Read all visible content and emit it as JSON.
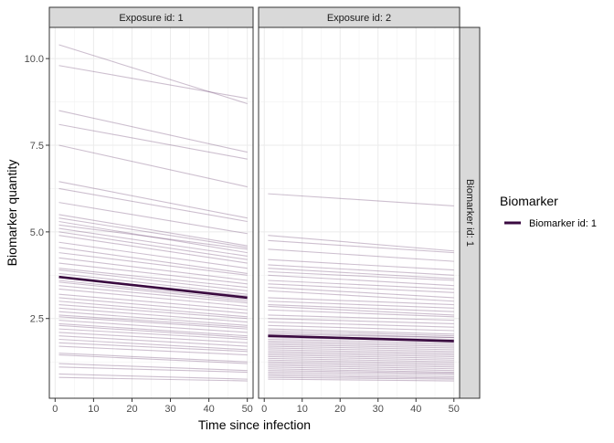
{
  "chart_data": {
    "type": "line",
    "facet_columns": [
      "Exposure id: 1",
      "Exposure id: 2"
    ],
    "facet_rows": [
      "Biomarker id: 1"
    ],
    "xlabel": "Time since infection",
    "ylabel": "Biomarker quantity",
    "x_ticks": [
      0,
      10,
      20,
      30,
      40,
      50
    ],
    "y_ticks": [
      2.5,
      5.0,
      7.5,
      10.0
    ],
    "y_tick_labels": [
      "2.5",
      "5.0",
      "7.5",
      "10.0"
    ],
    "xlim": [
      -1.5,
      51.5
    ],
    "ylim": [
      0.2,
      10.9
    ],
    "grid": true,
    "legend": {
      "title": "Biomarker",
      "entries": [
        "Biomarker id: 1"
      ],
      "position": "right"
    },
    "colors": {
      "individual": "#5b2b5f",
      "mean": "#3a0a40",
      "strip": "#d9d9d9",
      "grid": "#ebebeb",
      "panel_border": "#333333"
    },
    "panels": [
      {
        "exposure": "Exposure id: 1",
        "x": [
          1,
          50
        ],
        "mean_series": {
          "name": "Biomarker id: 1",
          "values": [
            3.7,
            3.1
          ]
        },
        "individual_series": [
          [
            10.4,
            8.7
          ],
          [
            9.8,
            8.85
          ],
          [
            8.5,
            7.3
          ],
          [
            8.1,
            7.1
          ],
          [
            7.5,
            6.3
          ],
          [
            6.45,
            5.4
          ],
          [
            6.25,
            5.3
          ],
          [
            5.85,
            4.95
          ],
          [
            5.5,
            4.6
          ],
          [
            5.4,
            4.55
          ],
          [
            5.3,
            4.4
          ],
          [
            5.2,
            4.5
          ],
          [
            5.1,
            4.3
          ],
          [
            5.0,
            4.2
          ],
          [
            4.9,
            4.1
          ],
          [
            4.7,
            3.95
          ],
          [
            4.55,
            3.8
          ],
          [
            4.4,
            3.75
          ],
          [
            4.25,
            3.6
          ],
          [
            4.1,
            3.5
          ],
          [
            3.95,
            3.4
          ],
          [
            3.9,
            3.3
          ],
          [
            3.8,
            3.2
          ],
          [
            3.7,
            3.15
          ],
          [
            3.6,
            3.05
          ],
          [
            3.55,
            3.0
          ],
          [
            3.45,
            2.95
          ],
          [
            3.35,
            2.85
          ],
          [
            3.2,
            2.75
          ],
          [
            3.1,
            2.65
          ],
          [
            3.0,
            2.55
          ],
          [
            2.9,
            2.5
          ],
          [
            2.8,
            2.4
          ],
          [
            2.7,
            2.3
          ],
          [
            2.6,
            2.25
          ],
          [
            2.55,
            2.2
          ],
          [
            2.45,
            2.1
          ],
          [
            2.35,
            2.0
          ],
          [
            2.3,
            1.95
          ],
          [
            2.2,
            1.9
          ],
          [
            2.1,
            1.8
          ],
          [
            2.0,
            1.7
          ],
          [
            1.9,
            1.6
          ],
          [
            1.8,
            1.55
          ],
          [
            1.7,
            1.45
          ],
          [
            1.5,
            1.25
          ],
          [
            1.45,
            1.2
          ],
          [
            1.2,
            1.0
          ],
          [
            1.1,
            0.95
          ],
          [
            0.9,
            0.75
          ],
          [
            0.8,
            0.7
          ]
        ]
      },
      {
        "exposure": "Exposure id: 2",
        "x": [
          1,
          50
        ],
        "mean_series": {
          "name": "Biomarker id: 1",
          "values": [
            2.0,
            1.85
          ]
        },
        "individual_series": [
          [
            6.1,
            5.75
          ],
          [
            4.9,
            4.45
          ],
          [
            4.75,
            4.4
          ],
          [
            4.5,
            4.15
          ],
          [
            4.2,
            3.9
          ],
          [
            4.05,
            3.75
          ],
          [
            3.95,
            3.65
          ],
          [
            3.85,
            3.6
          ],
          [
            3.75,
            3.45
          ],
          [
            3.6,
            3.35
          ],
          [
            3.5,
            3.25
          ],
          [
            3.4,
            3.1
          ],
          [
            3.3,
            3.0
          ],
          [
            3.1,
            2.9
          ],
          [
            3.0,
            2.8
          ],
          [
            2.9,
            2.7
          ],
          [
            2.85,
            2.6
          ],
          [
            2.75,
            2.55
          ],
          [
            2.6,
            2.45
          ],
          [
            2.5,
            2.35
          ],
          [
            2.4,
            2.25
          ],
          [
            2.3,
            2.15
          ],
          [
            2.2,
            2.05
          ],
          [
            2.15,
            2.0
          ],
          [
            2.1,
            1.95
          ],
          [
            2.05,
            1.95
          ],
          [
            2.0,
            1.9
          ],
          [
            1.95,
            1.85
          ],
          [
            1.9,
            1.8
          ],
          [
            1.85,
            1.75
          ],
          [
            1.8,
            1.7
          ],
          [
            1.75,
            1.65
          ],
          [
            1.7,
            1.6
          ],
          [
            1.65,
            1.55
          ],
          [
            1.6,
            1.5
          ],
          [
            1.55,
            1.45
          ],
          [
            1.5,
            1.4
          ],
          [
            1.45,
            1.35
          ],
          [
            1.4,
            1.3
          ],
          [
            1.35,
            1.25
          ],
          [
            1.3,
            1.2
          ],
          [
            1.25,
            1.15
          ],
          [
            1.2,
            1.1
          ],
          [
            1.15,
            1.05
          ],
          [
            1.1,
            1.0
          ],
          [
            1.05,
            0.95
          ],
          [
            1.0,
            0.92
          ],
          [
            0.95,
            0.88
          ],
          [
            0.9,
            0.82
          ],
          [
            0.85,
            0.78
          ],
          [
            0.8,
            0.75
          ],
          [
            0.75,
            0.7
          ]
        ]
      }
    ]
  }
}
